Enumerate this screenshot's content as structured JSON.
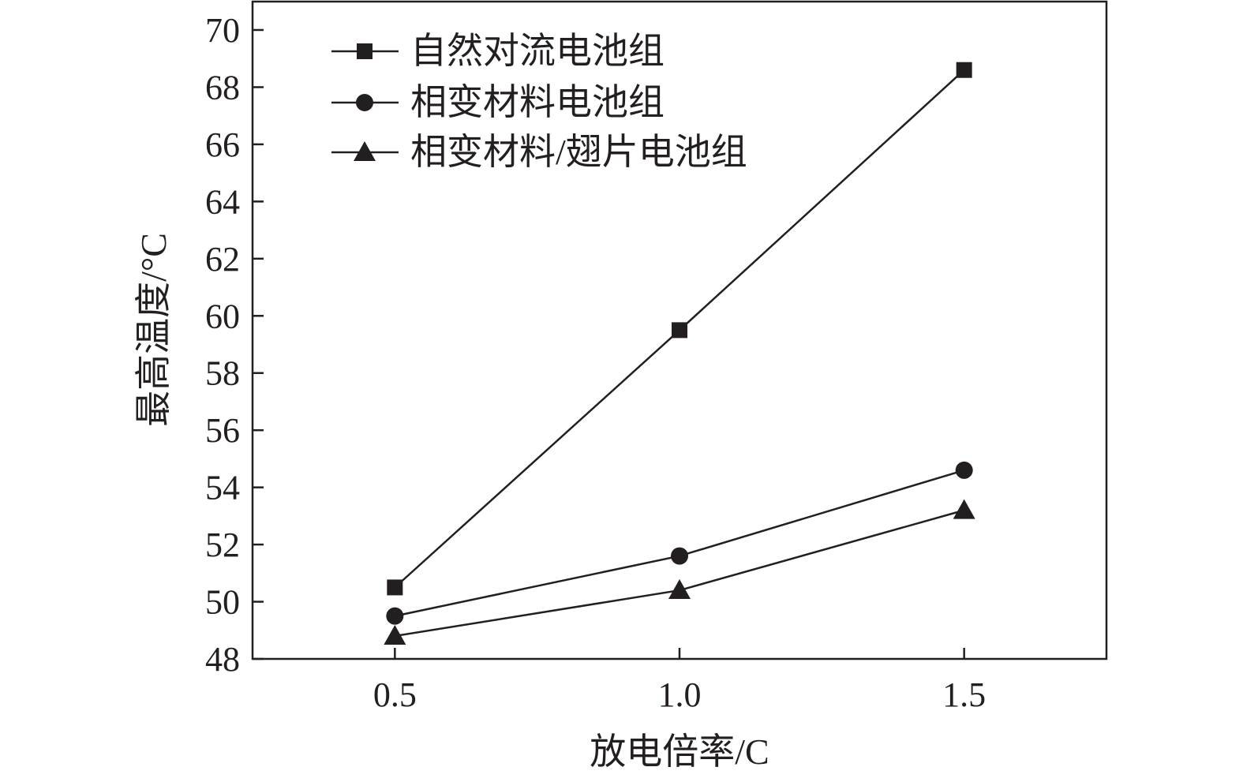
{
  "chart_data": {
    "type": "line",
    "xlabel": "放电倍率/C",
    "ylabel": "最高温度/°C",
    "xlim": [
      0.25,
      1.75
    ],
    "ylim": [
      48,
      70
    ],
    "x_ticks": [
      0.5,
      1.0,
      1.5
    ],
    "x_tick_labels": [
      "0.5",
      "1.0",
      "1.5"
    ],
    "y_ticks": [
      48,
      50,
      52,
      54,
      56,
      58,
      60,
      62,
      64,
      66,
      68,
      70
    ],
    "y_tick_labels": [
      "48",
      "50",
      "52",
      "54",
      "56",
      "58",
      "60",
      "62",
      "64",
      "66",
      "68",
      "70"
    ],
    "legend_position": "top-left",
    "grid": false,
    "color": "#231f20",
    "series": [
      {
        "name": "自然对流电池组",
        "marker": "square",
        "x": [
          0.5,
          1.0,
          1.5
        ],
        "values": [
          50.5,
          59.5,
          68.6
        ]
      },
      {
        "name": "相变材料电池组",
        "marker": "circle",
        "x": [
          0.5,
          1.0,
          1.5
        ],
        "values": [
          49.5,
          51.6,
          54.6
        ]
      },
      {
        "name": "相变材料/翅片电池组",
        "marker": "triangle",
        "x": [
          0.5,
          1.0,
          1.5
        ],
        "values": [
          48.8,
          50.4,
          53.2
        ]
      }
    ]
  }
}
